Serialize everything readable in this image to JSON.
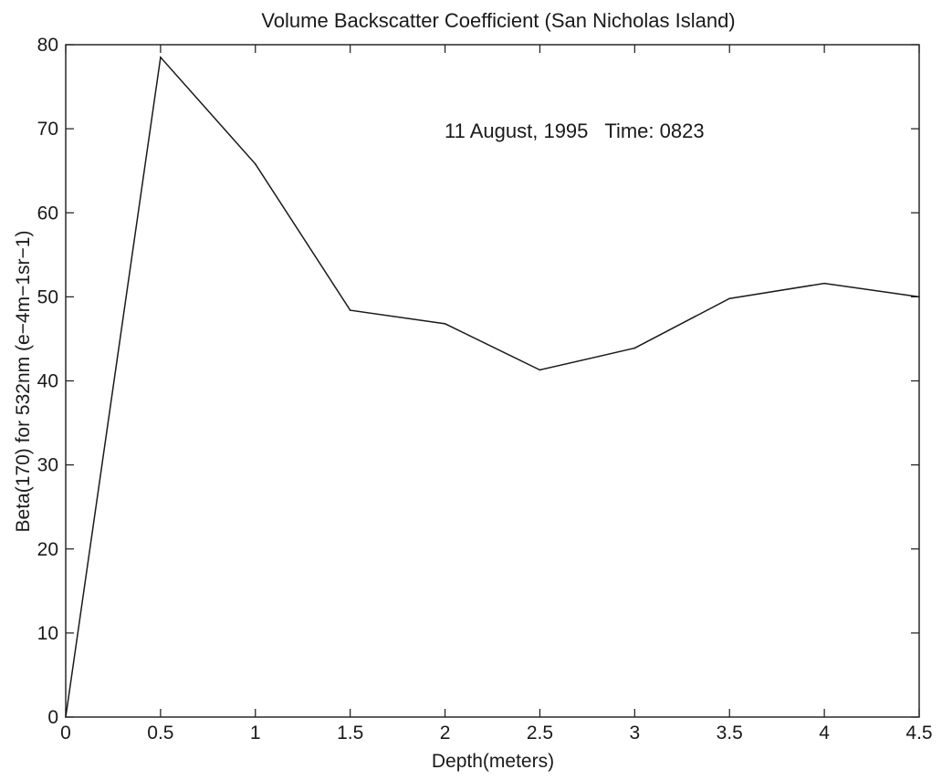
{
  "chart_data": {
    "type": "line",
    "title": "Volume Backscatter Coefficient (San Nicholas Island)",
    "annotation": "11 August, 1995   Time: 0823",
    "xlabel": "Depth(meters)",
    "ylabel": "Beta(170) for 532nm (e−4m−1sr−1)",
    "xlim": [
      0,
      4.5
    ],
    "ylim": [
      0,
      80
    ],
    "xticks": [
      0,
      0.5,
      1,
      1.5,
      2,
      2.5,
      3,
      3.5,
      4,
      4.5
    ],
    "xtick_labels": [
      "0",
      "0.5",
      "1",
      "1.5",
      "2",
      "2.5",
      "3",
      "3.5",
      "4",
      "4.5"
    ],
    "yticks": [
      0,
      10,
      20,
      30,
      40,
      50,
      60,
      70,
      80
    ],
    "ytick_labels": [
      "0",
      "10",
      "20",
      "30",
      "40",
      "50",
      "60",
      "70",
      "80"
    ],
    "grid": false,
    "series": [
      {
        "x": [
          0,
          0.5,
          1,
          1.5,
          2,
          2.5,
          3,
          3.5,
          4,
          4.5
        ],
        "values": [
          0,
          78.5,
          65.8,
          48.4,
          46.8,
          41.3,
          43.9,
          49.8,
          51.6,
          50.0
        ],
        "color": "#1a1a1a"
      }
    ]
  }
}
